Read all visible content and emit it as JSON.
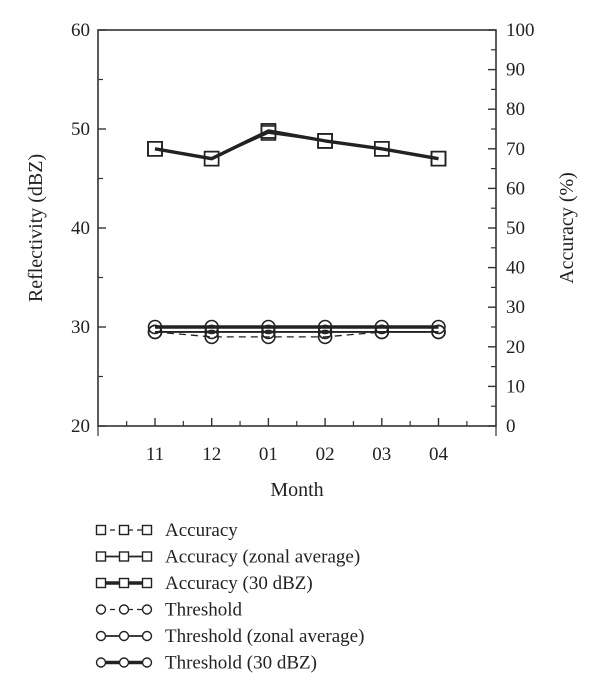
{
  "chart_data": {
    "type": "line",
    "xlabel": "Month",
    "ylabel_left": "Reflectivity (dBZ)",
    "ylabel_right": "Accuracy (%)",
    "categories": [
      "11",
      "12",
      "01",
      "02",
      "03",
      "04"
    ],
    "y_left": {
      "lim": [
        20,
        60
      ],
      "ticks": [
        "20",
        "30",
        "40",
        "50",
        "60"
      ]
    },
    "y_right": {
      "lim": [
        0,
        100
      ],
      "ticks": [
        "0",
        "10",
        "20",
        "30",
        "40",
        "50",
        "60",
        "70",
        "80",
        "90",
        "100"
      ]
    },
    "grid": false,
    "legend_position": "bottom",
    "series": [
      {
        "name": "Accuracy",
        "axis": "right",
        "marker": "square",
        "line": "dashed",
        "values": [
          70,
          67.5,
          74.5,
          72,
          70,
          67.5
        ]
      },
      {
        "name": "Accuracy (zonal average)",
        "axis": "right",
        "marker": "square",
        "line": "solid",
        "values": [
          70,
          67.5,
          74,
          72,
          70,
          67.5
        ]
      },
      {
        "name": "Accuracy (30 dBZ)",
        "axis": "right",
        "marker": "square",
        "line": "thick",
        "values": [
          70,
          67.5,
          74.5,
          72,
          70,
          67.5
        ]
      },
      {
        "name": "Threshold",
        "axis": "left",
        "marker": "circle",
        "line": "dashed",
        "values": [
          29.5,
          29,
          29,
          29,
          29.5,
          29.5
        ]
      },
      {
        "name": "Threshold (zonal average)",
        "axis": "left",
        "marker": "circle",
        "line": "solid",
        "values": [
          29.5,
          29.5,
          29.5,
          29.5,
          29.5,
          29.5
        ]
      },
      {
        "name": "Threshold (30 dBZ)",
        "axis": "left",
        "marker": "circle",
        "line": "thick",
        "values": [
          30,
          30,
          30,
          30,
          30,
          30
        ]
      }
    ]
  }
}
